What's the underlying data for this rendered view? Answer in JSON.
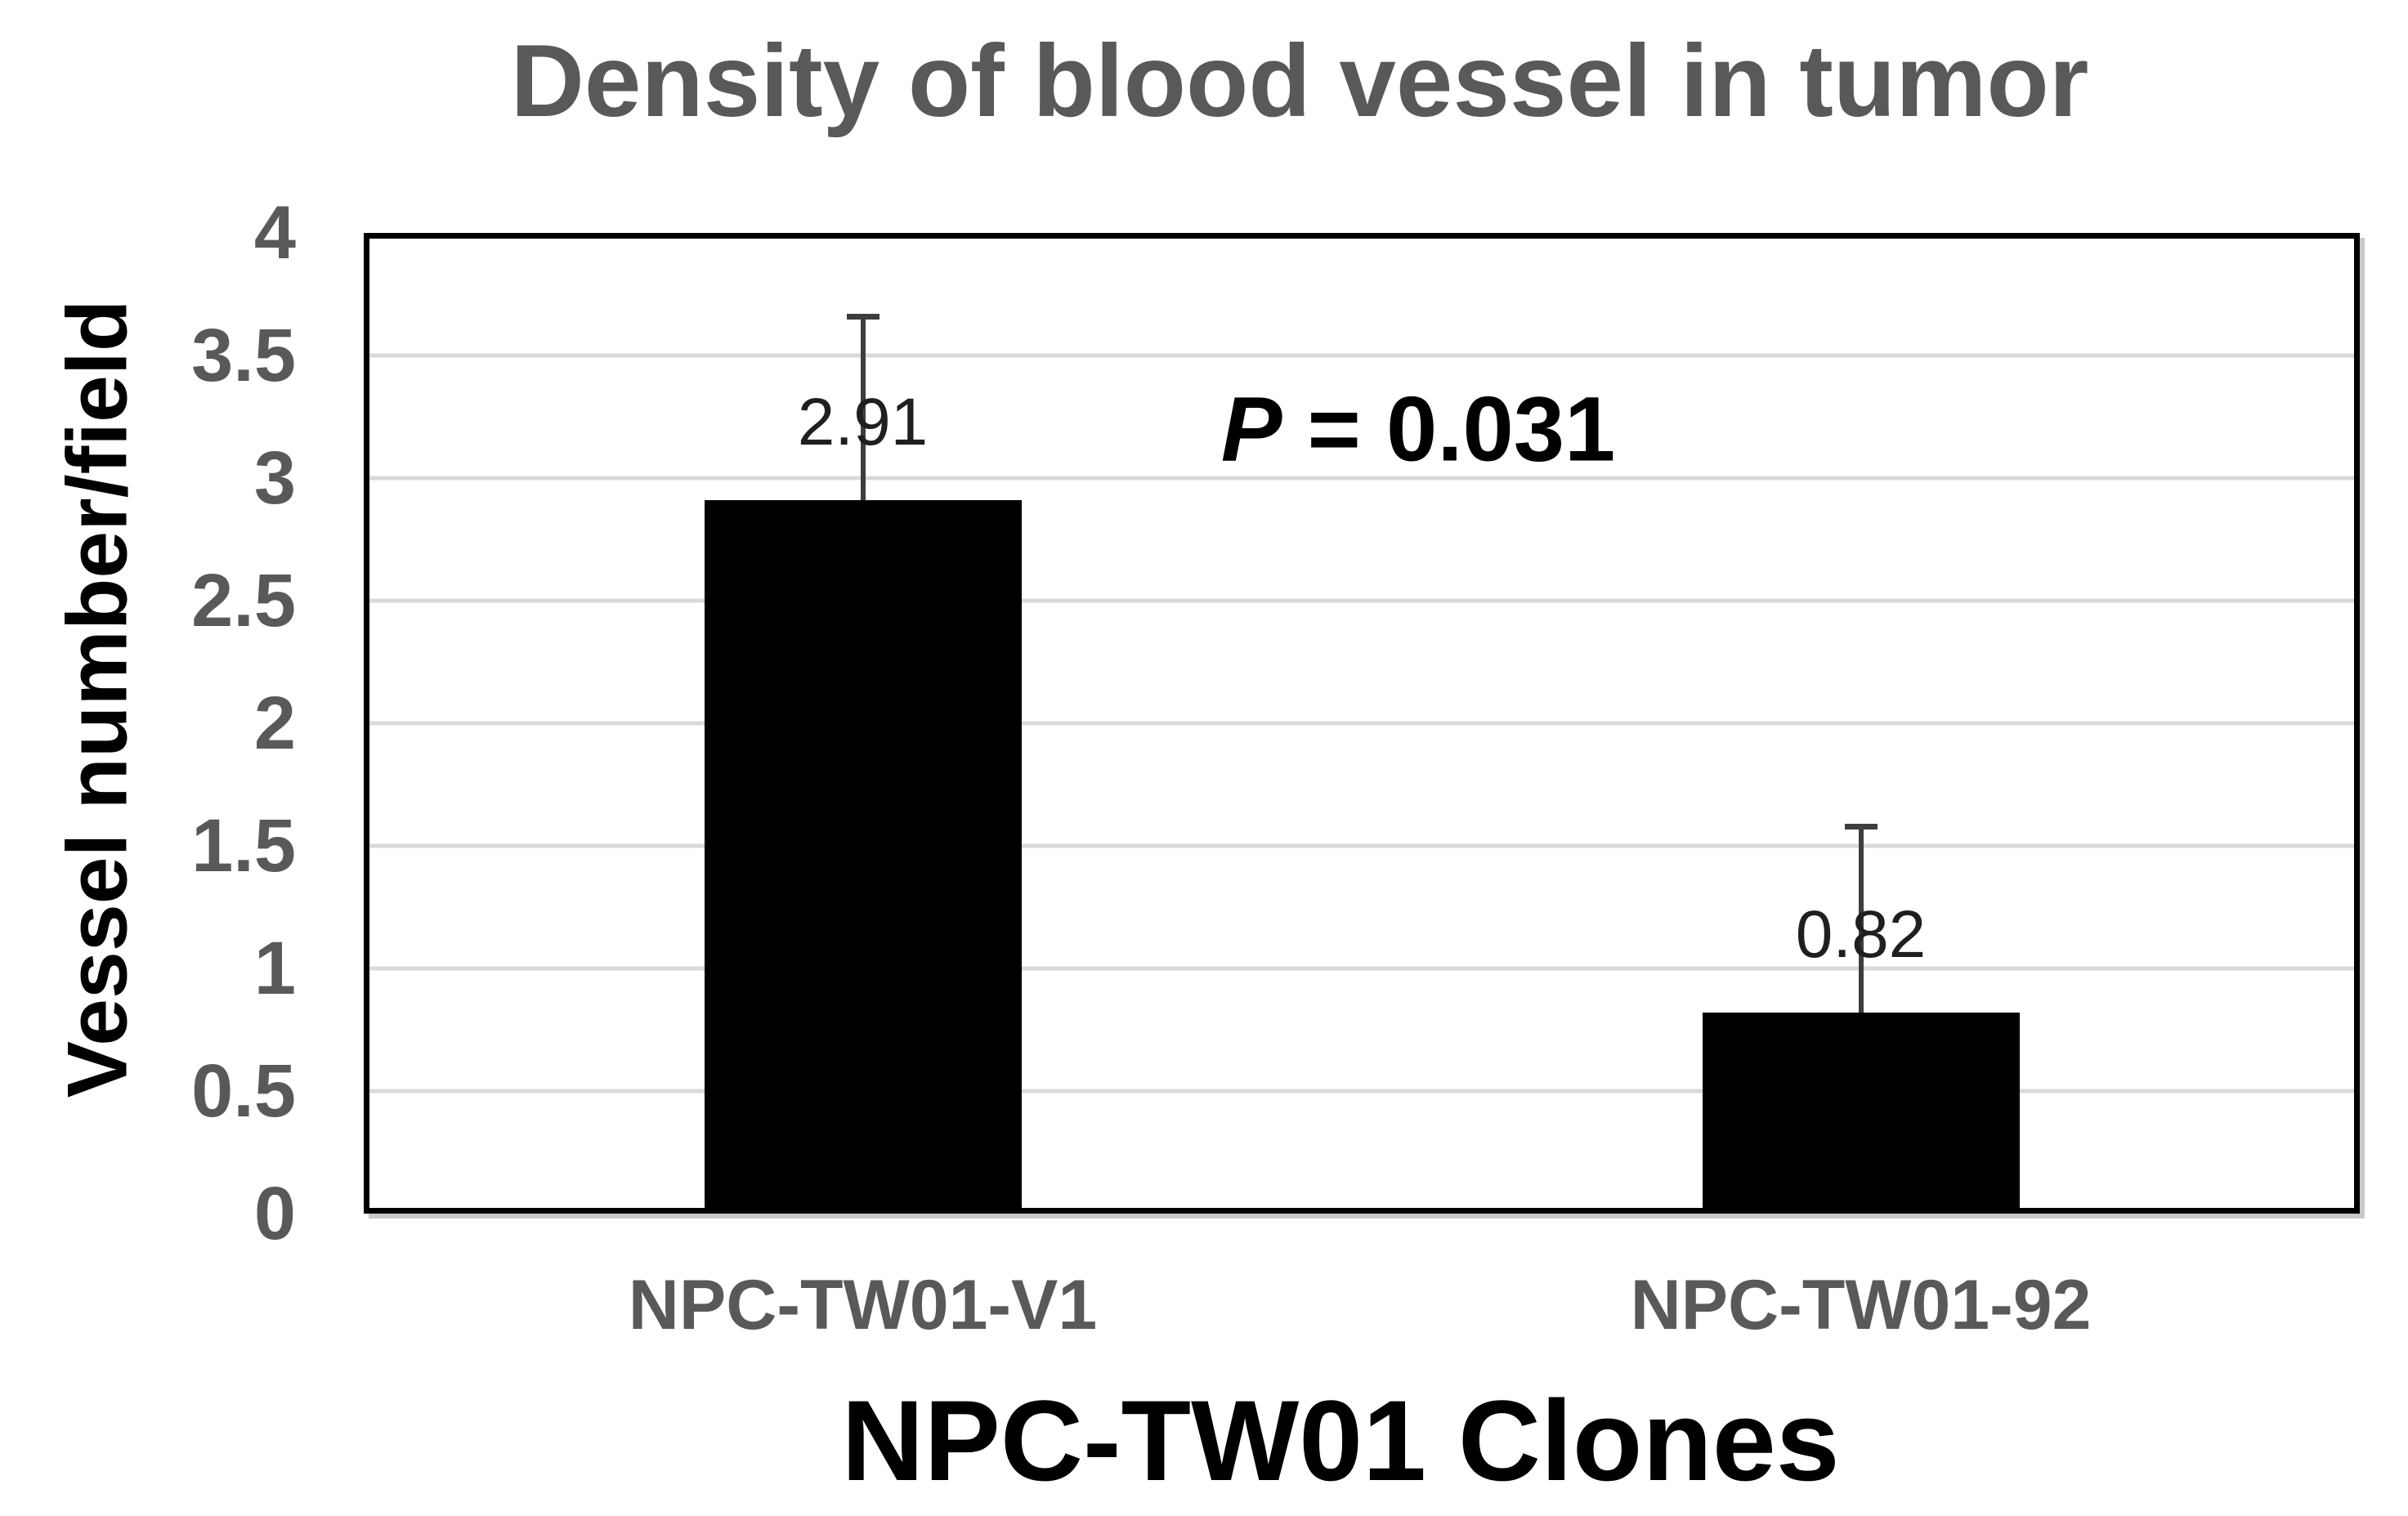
{
  "chart_data": {
    "type": "bar",
    "title": "Density of blood vessel in tumor",
    "xlabel": "NPC-TW01 Clones",
    "ylabel": "Vessel number/field",
    "categories": [
      "NPC-TW01-V1",
      "NPC-TW01-92"
    ],
    "values": [
      2.91,
      0.82
    ],
    "value_labels": [
      "2.91",
      "0.82"
    ],
    "errors_upper": [
      0.75,
      0.76
    ],
    "ylim": [
      0,
      4
    ],
    "yticks": [
      {
        "value": 0,
        "label": "0"
      },
      {
        "value": 0.5,
        "label": "0.5"
      },
      {
        "value": 1,
        "label": "1"
      },
      {
        "value": 1.5,
        "label": "1.5"
      },
      {
        "value": 2,
        "label": "2"
      },
      {
        "value": 2.5,
        "label": "2.5"
      },
      {
        "value": 3,
        "label": "3"
      },
      {
        "value": 3.5,
        "label": "3.5"
      },
      {
        "value": 4,
        "label": "4"
      }
    ],
    "gridline_values": [
      0.5,
      1,
      1.5,
      2,
      2.5,
      3,
      3.5
    ],
    "grid": true,
    "legend": "none",
    "annotation": {
      "italic": "P",
      "rest": " = 0.031"
    }
  },
  "colors": {
    "title": "#595959",
    "tick_labels": "#595959",
    "axis_titles": "#000000",
    "bar": "#000000",
    "gridline": "#d9d9d9",
    "plot_border": "#000000",
    "border_shadow": "#c9c9c9",
    "error_bar": "#3d3d3d",
    "value_label": "#1f1f1f",
    "annotation": "#000000",
    "background": "#ffffff"
  }
}
